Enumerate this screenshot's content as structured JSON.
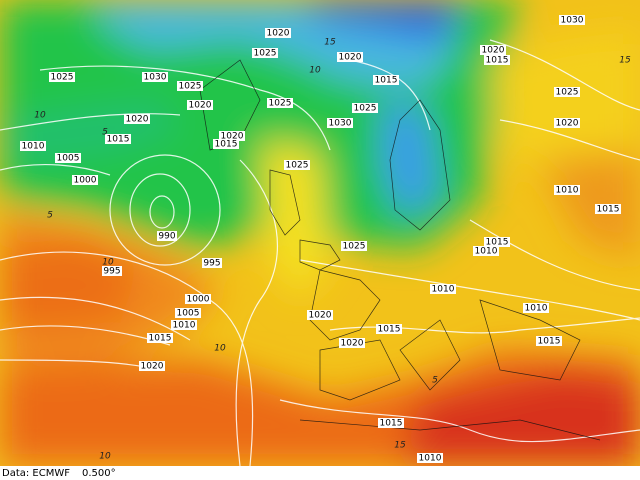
{
  "map": {
    "isobar_labels": [
      "1020",
      "1020",
      "1030",
      "1020",
      "1015",
      "1025",
      "1030",
      "1025",
      "1025",
      "1015",
      "1025",
      "1020",
      "1025",
      "1025",
      "1030",
      "1020",
      "1015",
      "1020",
      "1015",
      "1020",
      "1010",
      "1005",
      "1025",
      "1000",
      "1010",
      "1015",
      "990",
      "995",
      "1025",
      "1015",
      "1010",
      "995",
      "1010",
      "1000",
      "1010",
      "1005",
      "1010",
      "1020",
      "1015",
      "1015",
      "1020",
      "1015",
      "1020",
      "1015",
      "1010"
    ],
    "temperature_labels": [
      "10",
      "5",
      "10",
      "15",
      "10",
      "5",
      "10",
      "5",
      "15",
      "10",
      "15"
    ],
    "footer": {
      "source": "Data: ECMWF",
      "resolution": "0.500°"
    }
  }
}
